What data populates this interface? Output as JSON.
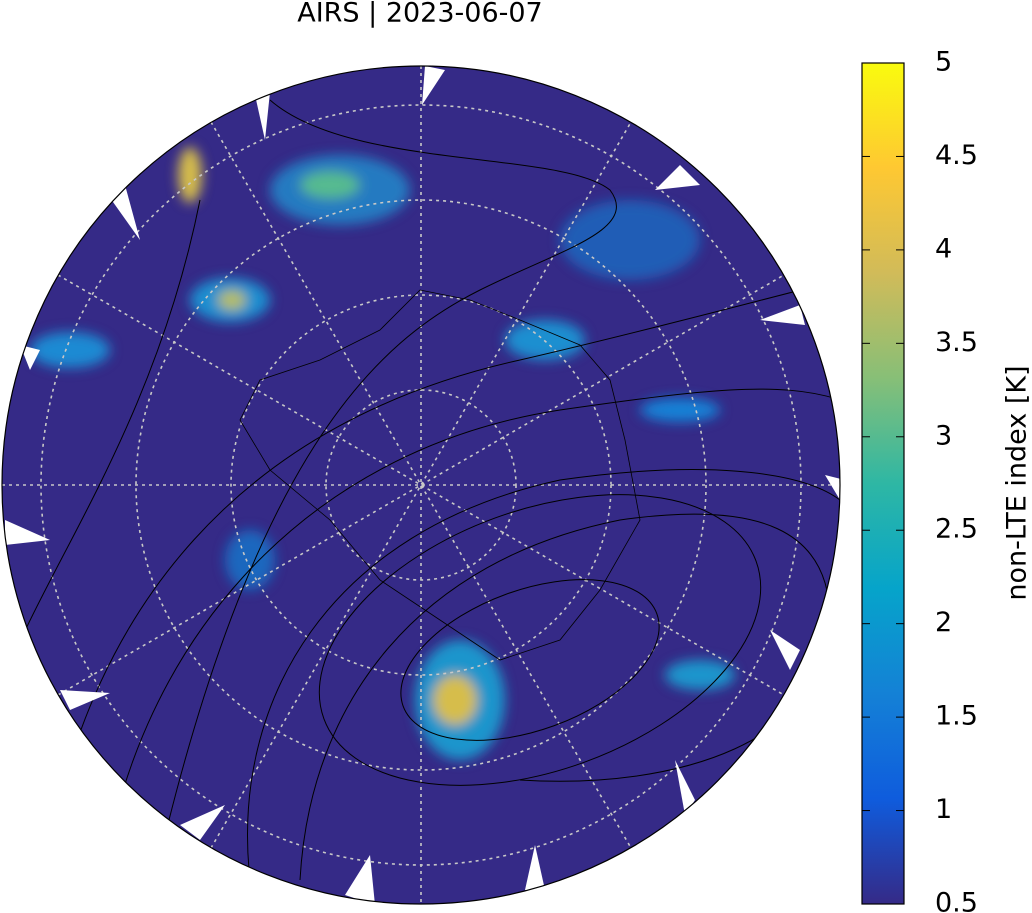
{
  "title": "AIRS | 2023-06-07",
  "colorbar": {
    "label": "non-LTE index [K]",
    "lim": [
      0.5,
      5
    ],
    "ticks": [
      0.5,
      1,
      1.5,
      2,
      2.5,
      3,
      3.5,
      4,
      4.5,
      5
    ],
    "colormap": [
      "#352a87",
      "#0f5cdd",
      "#1481d6",
      "#06a4ca",
      "#2eb7a4",
      "#87bf77",
      "#d1bb59",
      "#fec832",
      "#f9fb0e"
    ]
  }
}
